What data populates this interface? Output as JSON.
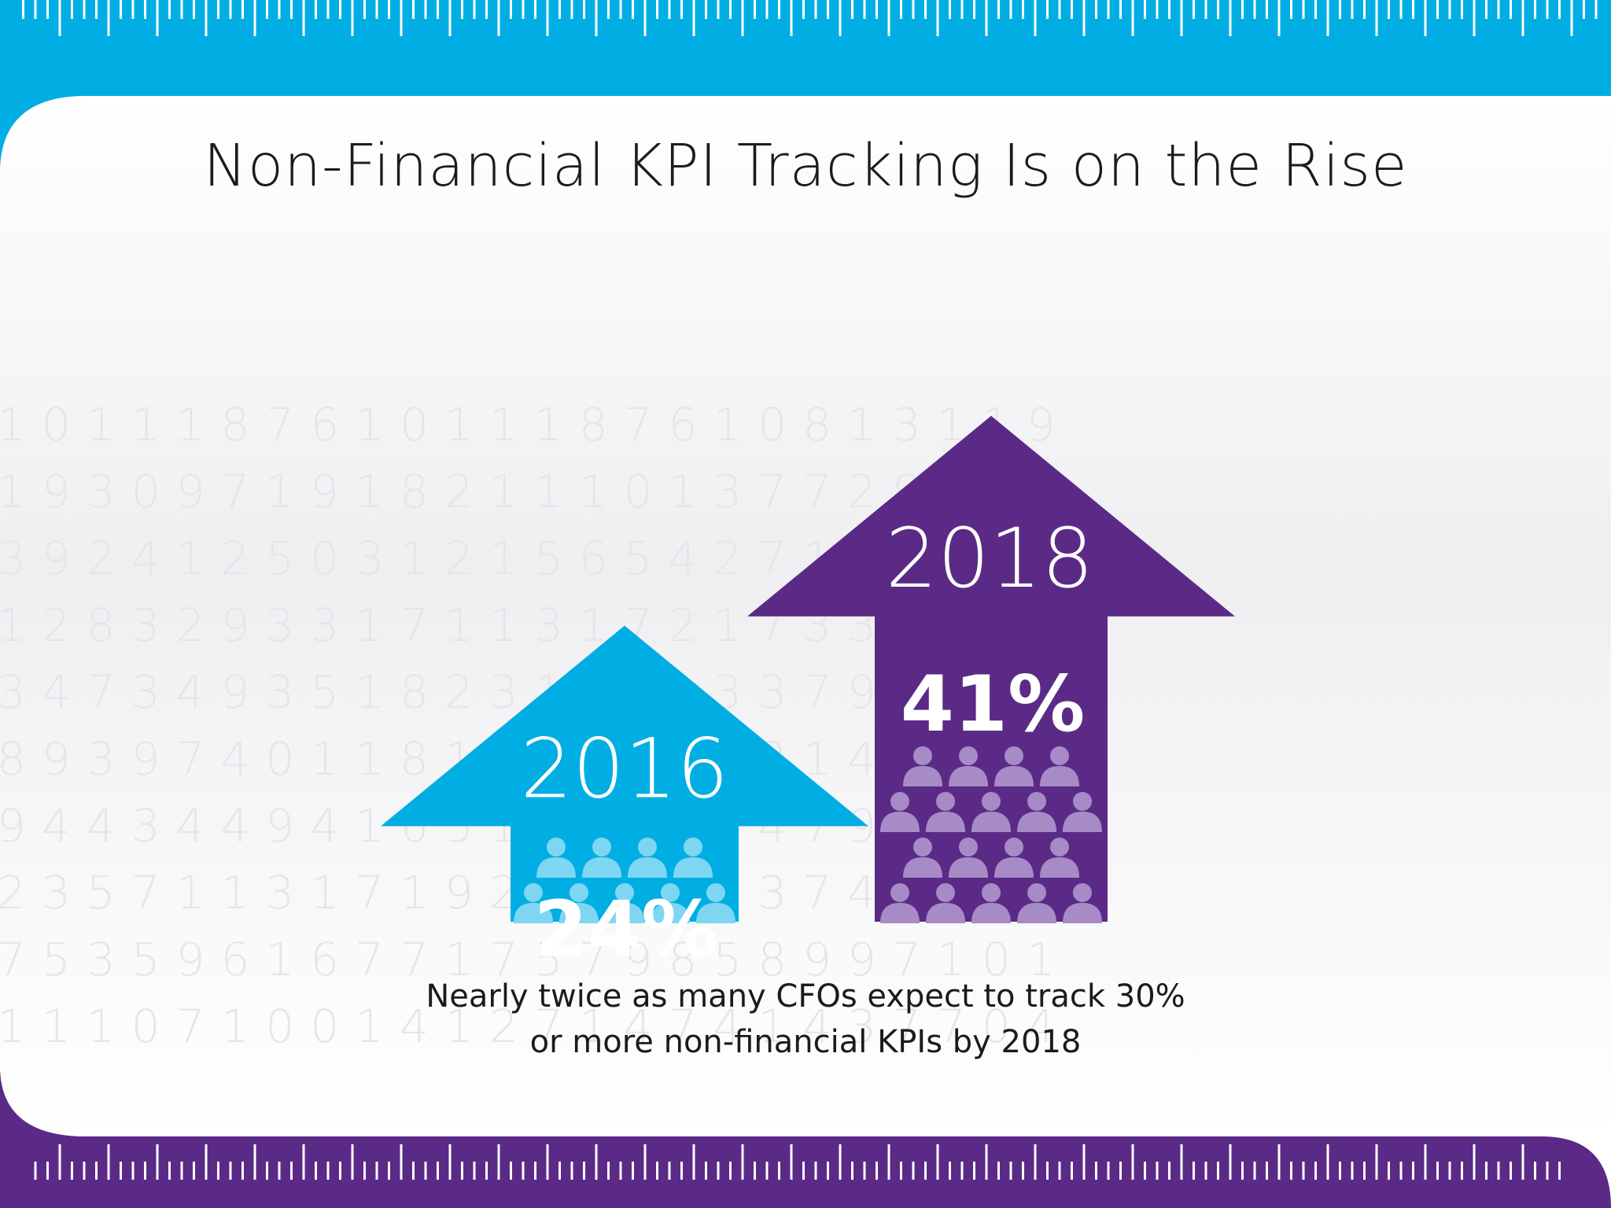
{
  "title": "Non-Financial KPI Tracking Is on the Rise",
  "caption_lines": [
    "Nearly twice as many CFOs expect to track 30%",
    "or more non-financial KPIs by 2018"
  ],
  "colors": {
    "cyan": "#00aee3",
    "purple": "#5b2a86",
    "cyan_people": "#7fd6f2",
    "purple_people": "#a78bc7",
    "watermark_digits": "#e6e6ea"
  },
  "chart_data": {
    "type": "bar",
    "categories": [
      "2016",
      "2018"
    ],
    "values": [
      24,
      41
    ],
    "value_labels": [
      "24%",
      "41%"
    ],
    "unit": "%",
    "series_colors": [
      "#00aee3",
      "#5b2a86"
    ]
  },
  "background_digits": [
    "1 0 1 1 1 8 7 6 1 0 1 1 1 8 7 6 1 0 8 1 3 1 1 9",
    "1 9 3 0 9 7 1 9 1 8 2 1 1 1 0 1 3 7 7 2 9 2 3 2",
    "3 9 2 4 1 2 5 0 3 1 2 1 5 6 5 4 2 7 1 2 7 7 2 0",
    "1 2 8 3 2 9 3 3 1 7 1 1 3 1 7 2 1 7 3 3 1 3 3 1",
    "3 4 7 3 4 9 3 5 1 8 2 3 1 0 7 1 3 3 7 9 3 8 3 5",
    "8 9 3 9 7 4 0 1 1 8 1 4 1 1 2 2 4 3 1 4 3 3 4 1",
    "9 4 4 3 4 4 9 4 1 6 5 1 4 2 5 6 7 4 7 9 4 8 2 3",
    "2 3 5 7 1 1 3 1 7 1 9 2 3 2 9 3 1 3 7 4 1 4 3 4",
    "7 5 3 5 9 6 1 6 7 7 1 7 5 7 9 8 5 8 9 9 7 1 0 1",
    "1 1 1 0 7 1 0 0 1 4 1 2 7 1 4 7 4 1 4 3 7 7 0 4"
  ]
}
